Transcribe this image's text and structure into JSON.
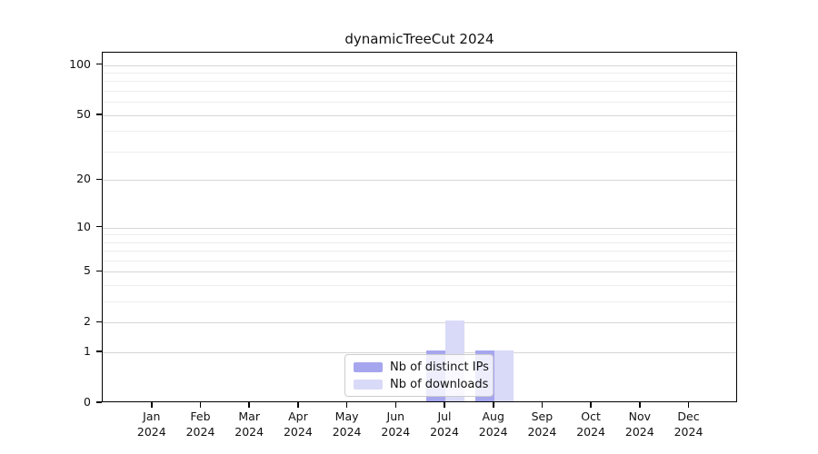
{
  "title": "dynamicTreeCut 2024",
  "colors": {
    "distinct_ips": "#a6a6ef",
    "downloads": "#d9d9f8",
    "grid_major": "#d6d6d6",
    "grid_minor": "#ededed",
    "axis": "#000000",
    "legend_border": "#cccccc"
  },
  "legend": {
    "items": [
      {
        "label": "Nb of distinct IPs"
      },
      {
        "label": "Nb of downloads"
      }
    ]
  },
  "y_axis": {
    "tick_labels": [
      "0",
      "1",
      "2",
      "5",
      "10",
      "20",
      "50",
      "100"
    ]
  },
  "x_axis": {
    "months": [
      "Jan",
      "Feb",
      "Mar",
      "Apr",
      "May",
      "Jun",
      "Jul",
      "Aug",
      "Sep",
      "Oct",
      "Nov",
      "Dec"
    ],
    "year": "2024"
  },
  "chart_data": {
    "type": "bar",
    "title": "dynamicTreeCut 2024",
    "categories": [
      "Jan 2024",
      "Feb 2024",
      "Mar 2024",
      "Apr 2024",
      "May 2024",
      "Jun 2024",
      "Jul 2024",
      "Aug 2024",
      "Sep 2024",
      "Oct 2024",
      "Nov 2024",
      "Dec 2024"
    ],
    "series": [
      {
        "name": "Nb of distinct IPs",
        "color": "#a6a6ef",
        "values": [
          0,
          0,
          0,
          0,
          0,
          0,
          1,
          1,
          0,
          0,
          0,
          0
        ]
      },
      {
        "name": "Nb of downloads",
        "color": "#d9d9f8",
        "values": [
          0,
          0,
          0,
          0,
          0,
          0,
          2,
          1,
          0,
          0,
          0,
          0
        ]
      }
    ],
    "yscale": "log1p",
    "ylim": [
      0,
      120
    ],
    "y_major_ticks": [
      0,
      1,
      2,
      5,
      10,
      20,
      50,
      100
    ],
    "y_minor_gridlines": [
      3,
      4,
      6,
      7,
      8,
      9,
      30,
      40,
      60,
      70,
      80,
      90
    ],
    "grid": "horizontal",
    "legend_position": "inside-bottom-center",
    "xlabel": "",
    "ylabel": ""
  }
}
